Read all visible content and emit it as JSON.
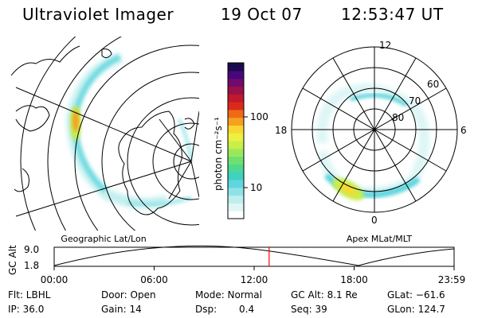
{
  "header": {
    "instrument": "Ultraviolet Imager",
    "date": "19 Oct 07",
    "time": "12:53:47 UT"
  },
  "colorbar": {
    "label": "photon cm⁻²s⁻¹",
    "ticks": [
      "100",
      "10"
    ],
    "colors": [
      "#ffffff",
      "#dff6f6",
      "#bfeeee",
      "#8fe3e8",
      "#5fd6de",
      "#3fd2c0",
      "#4ed890",
      "#6ee070",
      "#9ae85a",
      "#c8ee4a",
      "#eef040",
      "#f8d830",
      "#f6a020",
      "#ee6a18",
      "#dc2a1a",
      "#c0182c",
      "#9a1048",
      "#720a6c",
      "#46087a",
      "#1c0a4e"
    ]
  },
  "left_map": {
    "caption": "Geographic Lat/Lon"
  },
  "right_map": {
    "caption": "Apex MLat/MLT",
    "mlt_labels": {
      "top": "12",
      "left": "18",
      "right": "6",
      "bottom": "0"
    },
    "lat_labels": [
      "60",
      "70",
      "80"
    ]
  },
  "altitude_plot": {
    "ylabel": "GC Alt",
    "yticks": [
      "9.0",
      "1.8"
    ],
    "xticks": [
      "00:00",
      "06:00",
      "12:00",
      "18:00",
      "23:59"
    ],
    "marker_time_hours": 12.9,
    "marker_color": "#ff0000"
  },
  "info": {
    "row1": {
      "flt": "Flt: LBHL",
      "door": "Door: Open",
      "mode": "Mode: Normal",
      "gcalt": "GC Alt: 8.1 Re",
      "glat": "GLat: −61.6"
    },
    "row2": {
      "ip": "IP: 36.0",
      "gain": "Gain: 14",
      "dsp_label": "Dsp:",
      "dsp_value": "0.4",
      "seq": "Seq: 39",
      "glon": "GLon: 124.7"
    }
  }
}
